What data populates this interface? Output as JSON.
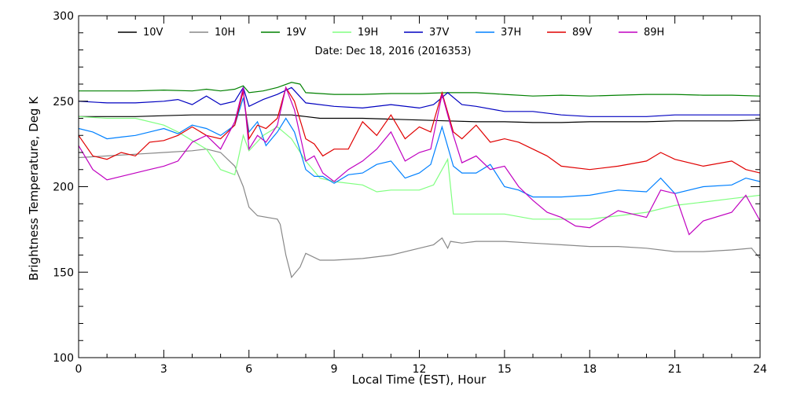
{
  "chart_data": {
    "type": "line",
    "title": "",
    "annotation": "Date: Dec 18, 2016 (2016353)",
    "xlabel": "Local Time (EST), Hour",
    "ylabel": "Brightness Temperature, Deg K",
    "xlim": [
      0,
      24
    ],
    "ylim": [
      100,
      300
    ],
    "xticks": [
      0,
      3,
      6,
      9,
      12,
      15,
      18,
      21,
      24
    ],
    "yticks": [
      100,
      150,
      200,
      250,
      300
    ],
    "grid": false,
    "legend_position": "top",
    "series": [
      {
        "name": "10V",
        "color": "#000000",
        "x": [
          0,
          1,
          2,
          3,
          4,
          5,
          5.8,
          6,
          6.5,
          7,
          7.5,
          8,
          8.5,
          9,
          10,
          11,
          12,
          13,
          14,
          15,
          16,
          17,
          18,
          19,
          20,
          21,
          22,
          23,
          24
        ],
        "y": [
          241,
          241,
          241,
          241.5,
          242,
          242,
          242,
          242,
          242,
          242,
          242,
          241,
          240,
          240,
          240,
          239.5,
          239,
          238.5,
          238,
          238,
          237.5,
          237.5,
          238,
          238,
          238,
          238.5,
          238.5,
          238.5,
          239
        ]
      },
      {
        "name": "10H",
        "color": "#888888",
        "x": [
          0,
          1,
          2,
          3,
          4,
          4.5,
          5,
          5.5,
          5.8,
          6,
          6.3,
          7,
          7.1,
          7.3,
          7.5,
          7.8,
          8,
          8.5,
          9,
          10,
          11,
          12,
          12.5,
          12.8,
          13,
          13.1,
          13.5,
          14,
          15,
          16,
          17,
          18,
          19,
          20,
          21,
          22,
          23,
          23.7,
          24
        ],
        "y": [
          217,
          218,
          219,
          220,
          221,
          222,
          220,
          212,
          200,
          188,
          183,
          181,
          178,
          160,
          147,
          153,
          161,
          157,
          157,
          158,
          160,
          164,
          166,
          170,
          164,
          168,
          167,
          168,
          168,
          167,
          166,
          165,
          165,
          164,
          162,
          162,
          163,
          164,
          158
        ]
      },
      {
        "name": "19V",
        "color": "#008000",
        "x": [
          0,
          1,
          2,
          3,
          4,
          4.5,
          5,
          5.5,
          5.8,
          6,
          6.5,
          7,
          7.5,
          7.8,
          8,
          9,
          10,
          11,
          12,
          13,
          14,
          15,
          16,
          17,
          18,
          19,
          20,
          21,
          22,
          23,
          24
        ],
        "y": [
          256,
          256,
          256,
          256.5,
          256,
          257,
          256,
          257,
          259,
          255,
          256,
          258,
          261,
          260,
          255,
          254,
          254,
          254.5,
          254.5,
          255,
          255,
          254,
          253,
          253.5,
          253,
          253.5,
          254,
          254,
          253.5,
          253.5,
          253
        ]
      },
      {
        "name": "19H",
        "color": "#80ff80",
        "x": [
          0,
          1,
          2,
          3,
          3.5,
          4,
          4.5,
          5,
          5.5,
          5.8,
          6,
          6.5,
          7,
          7.5,
          8,
          8.5,
          9,
          10,
          10.5,
          11,
          12,
          12.5,
          13,
          13.2,
          13.5,
          14,
          15,
          16,
          17,
          18,
          19,
          20,
          21,
          22,
          23,
          24
        ],
        "y": [
          241,
          240,
          240,
          236,
          232,
          227,
          222,
          210,
          207,
          230,
          221,
          230,
          235,
          228,
          215,
          205,
          203,
          201,
          197,
          198,
          198,
          201,
          216,
          184,
          184,
          184,
          184,
          181,
          181,
          181,
          183,
          185,
          189,
          191,
          193,
          195
        ]
      },
      {
        "name": "37V",
        "color": "#0000c0",
        "x": [
          0,
          1,
          2,
          3,
          3.5,
          4,
          4.5,
          5,
          5.5,
          5.8,
          6,
          6.5,
          7,
          7.5,
          8,
          9,
          10,
          11,
          12,
          12.5,
          13,
          13.5,
          14,
          15,
          16,
          17,
          18,
          19,
          20,
          21,
          22,
          23,
          24
        ],
        "y": [
          250,
          249,
          249,
          250,
          251,
          248,
          253,
          248,
          250,
          258,
          247,
          251,
          254,
          258,
          249,
          247,
          246,
          248,
          246,
          248,
          255,
          248,
          247,
          244,
          244,
          242,
          241,
          241,
          241,
          242,
          242,
          242,
          242
        ]
      },
      {
        "name": "37H",
        "color": "#0080ff",
        "x": [
          0,
          0.5,
          1,
          1.5,
          2,
          2.5,
          3,
          3.5,
          4,
          4.5,
          5,
          5.5,
          5.8,
          6,
          6.3,
          6.6,
          7,
          7.3,
          7.6,
          8,
          8.3,
          8.6,
          9,
          9.5,
          10,
          10.5,
          11,
          11.5,
          12,
          12.4,
          12.8,
          13.2,
          13.5,
          14,
          14.5,
          15,
          15.5,
          16,
          16.5,
          17,
          18,
          19,
          20,
          20.5,
          21,
          22,
          23,
          23.5,
          24
        ],
        "y": [
          234,
          232,
          228,
          229,
          230,
          232,
          234,
          231,
          236,
          234,
          230,
          236,
          252,
          232,
          238,
          224,
          232,
          240,
          232,
          210,
          206,
          206,
          202,
          207,
          208,
          213,
          215,
          205,
          208,
          213,
          235,
          212,
          208,
          208,
          213,
          200,
          198,
          194,
          194,
          194,
          195,
          198,
          197,
          205,
          196,
          200,
          201,
          205,
          203
        ]
      },
      {
        "name": "89V",
        "color": "#e00000",
        "x": [
          0,
          0.5,
          1,
          1.5,
          2,
          2.5,
          3,
          3.5,
          4,
          4.5,
          5,
          5.5,
          5.8,
          6,
          6.3,
          6.6,
          7,
          7.3,
          7.6,
          8,
          8.3,
          8.6,
          9,
          9.5,
          10,
          10.5,
          11,
          11.5,
          12,
          12.4,
          12.8,
          13.2,
          13.5,
          14,
          14.5,
          15,
          15.5,
          16,
          16.5,
          17,
          18,
          19,
          20,
          20.5,
          21,
          22,
          23,
          23.5,
          24
        ],
        "y": [
          230,
          218,
          216,
          220,
          218,
          226,
          227,
          230,
          235,
          230,
          228,
          236,
          256,
          228,
          236,
          234,
          240,
          258,
          250,
          228,
          225,
          218,
          222,
          222,
          238,
          230,
          242,
          228,
          235,
          232,
          255,
          232,
          228,
          236,
          226,
          228,
          226,
          222,
          218,
          212,
          210,
          212,
          215,
          220,
          216,
          212,
          215,
          210,
          208
        ]
      },
      {
        "name": "89H",
        "color": "#c000c0",
        "x": [
          0,
          0.5,
          1,
          1.5,
          2,
          2.5,
          3,
          3.5,
          4,
          4.5,
          5,
          5.5,
          5.8,
          6,
          6.3,
          6.6,
          7,
          7.3,
          7.6,
          8,
          8.3,
          8.6,
          9,
          9.5,
          10,
          10.5,
          11,
          11.5,
          12,
          12.4,
          12.8,
          13.2,
          13.5,
          14,
          14.5,
          15,
          15.5,
          16,
          16.5,
          17,
          17.5,
          18,
          19,
          20,
          20.5,
          21,
          21.5,
          22,
          23,
          23.5,
          24
        ],
        "y": [
          224,
          210,
          204,
          206,
          208,
          210,
          212,
          215,
          226,
          230,
          222,
          238,
          258,
          222,
          230,
          226,
          236,
          258,
          245,
          215,
          218,
          208,
          203,
          210,
          215,
          222,
          232,
          215,
          220,
          222,
          254,
          230,
          214,
          218,
          210,
          212,
          200,
          192,
          185,
          182,
          177,
          176,
          186,
          182,
          198,
          196,
          172,
          180,
          185,
          195,
          180
        ]
      }
    ]
  }
}
